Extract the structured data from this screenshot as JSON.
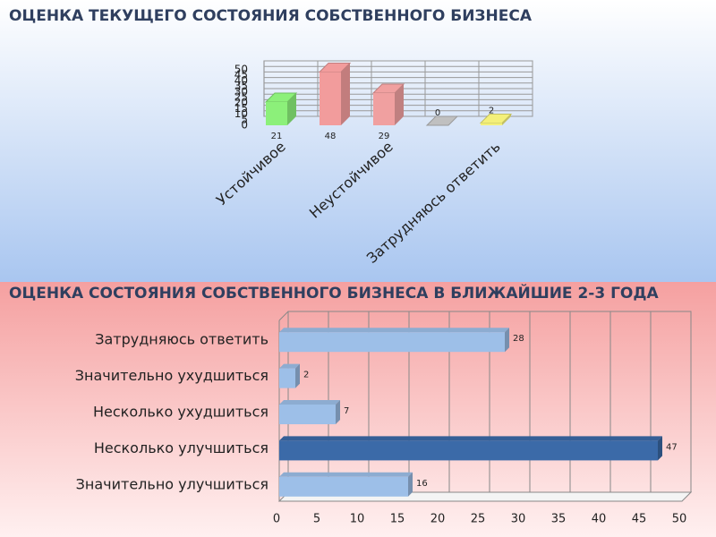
{
  "chart_data": [
    {
      "type": "bar",
      "title": "ОЦЕНКА ТЕКУЩЕГО СОСТОЯНИЯ СОБСТВЕННОГО БИЗНЕСА",
      "categories": [
        "Устойчивое",
        null,
        "Неустойчивое",
        null,
        "Затрудняюсь ответить"
      ],
      "values": [
        21,
        48,
        29,
        0,
        2
      ],
      "colors": [
        "#8cf07a",
        "#f29c9c",
        "#f0a0a0",
        "#c0c0c0",
        "#f4f07a"
      ],
      "ylim": [
        0,
        50
      ],
      "yticks": [
        0,
        5,
        10,
        15,
        20,
        25,
        30,
        35,
        40,
        45,
        50
      ],
      "grid": true
    },
    {
      "type": "barh",
      "title": "ОЦЕНКА СОСТОЯНИЯ СОБСТВЕННОГО БИЗНЕСА В БЛИЖАЙШИЕ 2-3 ГОДА",
      "categories": [
        "Затрудняюсь ответить",
        "Значительно ухудшиться",
        "Несколько ухудшиться",
        "Несколько улучшиться",
        "Значительно улучшиться"
      ],
      "values": [
        28,
        2,
        7,
        47,
        16
      ],
      "colors": [
        "#9dbfe8",
        "#9dbfe8",
        "#9dbfe8",
        "#3b6aa8",
        "#9dbfe8"
      ],
      "xlim": [
        0,
        50
      ],
      "xticks": [
        0,
        5,
        10,
        15,
        20,
        25,
        30,
        35,
        40,
        45,
        50
      ],
      "grid": true
    }
  ]
}
